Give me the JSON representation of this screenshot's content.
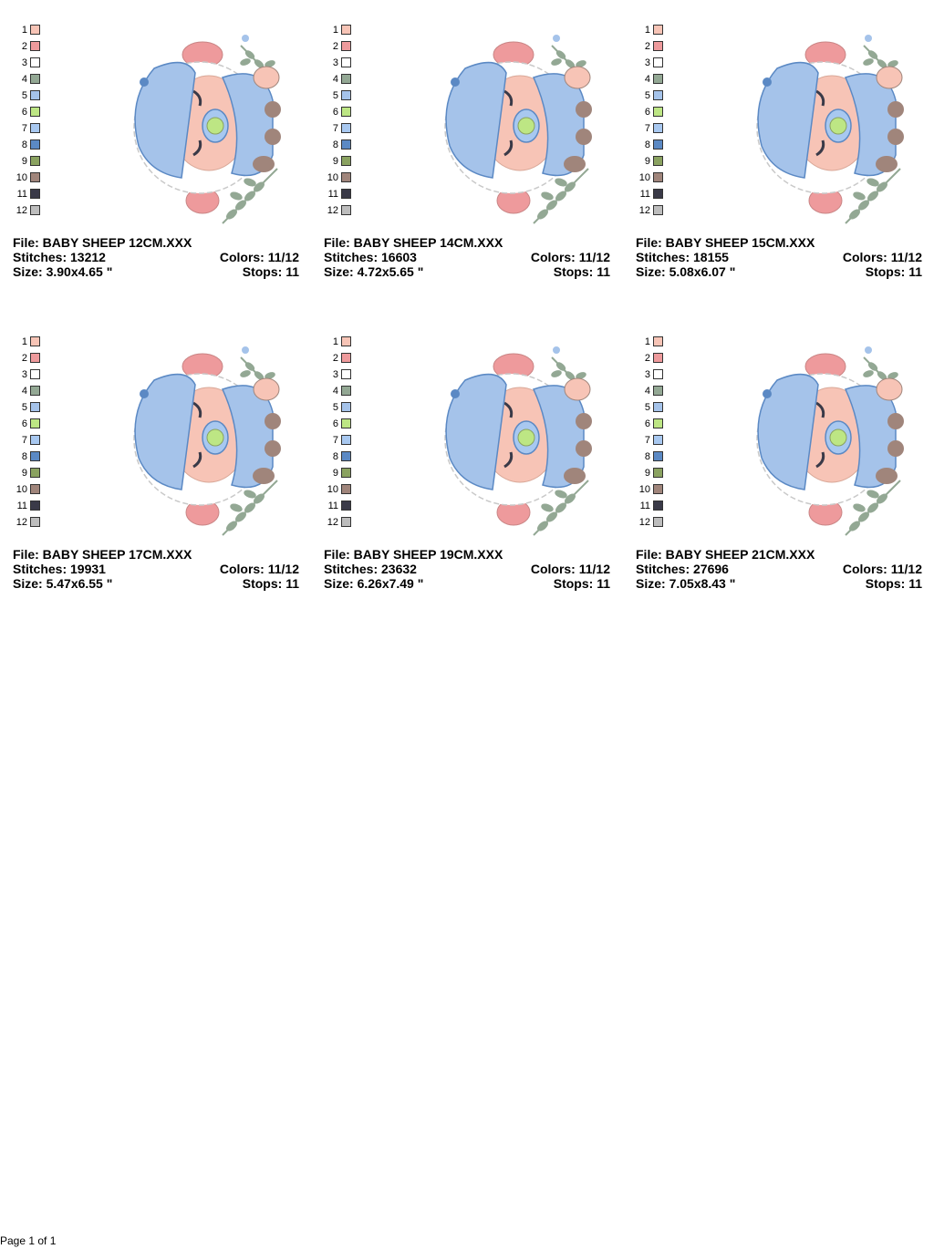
{
  "palette": {
    "numbers": [
      "1",
      "2",
      "3",
      "4",
      "5",
      "6",
      "7",
      "8",
      "9",
      "10",
      "11",
      "12"
    ],
    "colors": [
      "#f7c4b6",
      "#ee9a9c",
      "#ffffff",
      "#93a894",
      "#a5c3ea",
      "#bde684",
      "#a8c8f0",
      "#5b89c4",
      "#8aa260",
      "#a0857b",
      "#3a3a48",
      "#bdbdbd"
    ]
  },
  "designs": [
    {
      "file": "File: BABY SHEEP 12CM.XXX",
      "stitches": "Stitches: 13212",
      "colors": "Colors: 11/12",
      "size": "Size: 3.90x4.65 \"",
      "stops": "Stops: 11"
    },
    {
      "file": "File: BABY SHEEP 14CM.XXX",
      "stitches": "Stitches: 16603",
      "colors": "Colors: 11/12",
      "size": "Size: 4.72x5.65 \"",
      "stops": "Stops: 11"
    },
    {
      "file": "File: BABY SHEEP 15CM.XXX",
      "stitches": "Stitches: 18155",
      "colors": "Colors: 11/12",
      "size": "Size: 5.08x6.07 \"",
      "stops": "Stops: 11"
    },
    {
      "file": "File: BABY SHEEP 17CM.XXX",
      "stitches": "Stitches: 19931",
      "colors": "Colors: 11/12",
      "size": "Size: 5.47x6.55 \"",
      "stops": "Stops: 11"
    },
    {
      "file": "File: BABY SHEEP 19CM.XXX",
      "stitches": "Stitches: 23632",
      "colors": "Colors: 11/12",
      "size": "Size: 6.26x7.49 \"",
      "stops": "Stops: 11"
    },
    {
      "file": "File: BABY SHEEP 21CM.XXX",
      "stitches": "Stitches: 27696",
      "colors": "Colors: 11/12",
      "size": "Size: 7.05x8.43 \"",
      "stops": "Stops: 11"
    }
  ],
  "footer": {
    "page": "Page 1 of 1"
  }
}
